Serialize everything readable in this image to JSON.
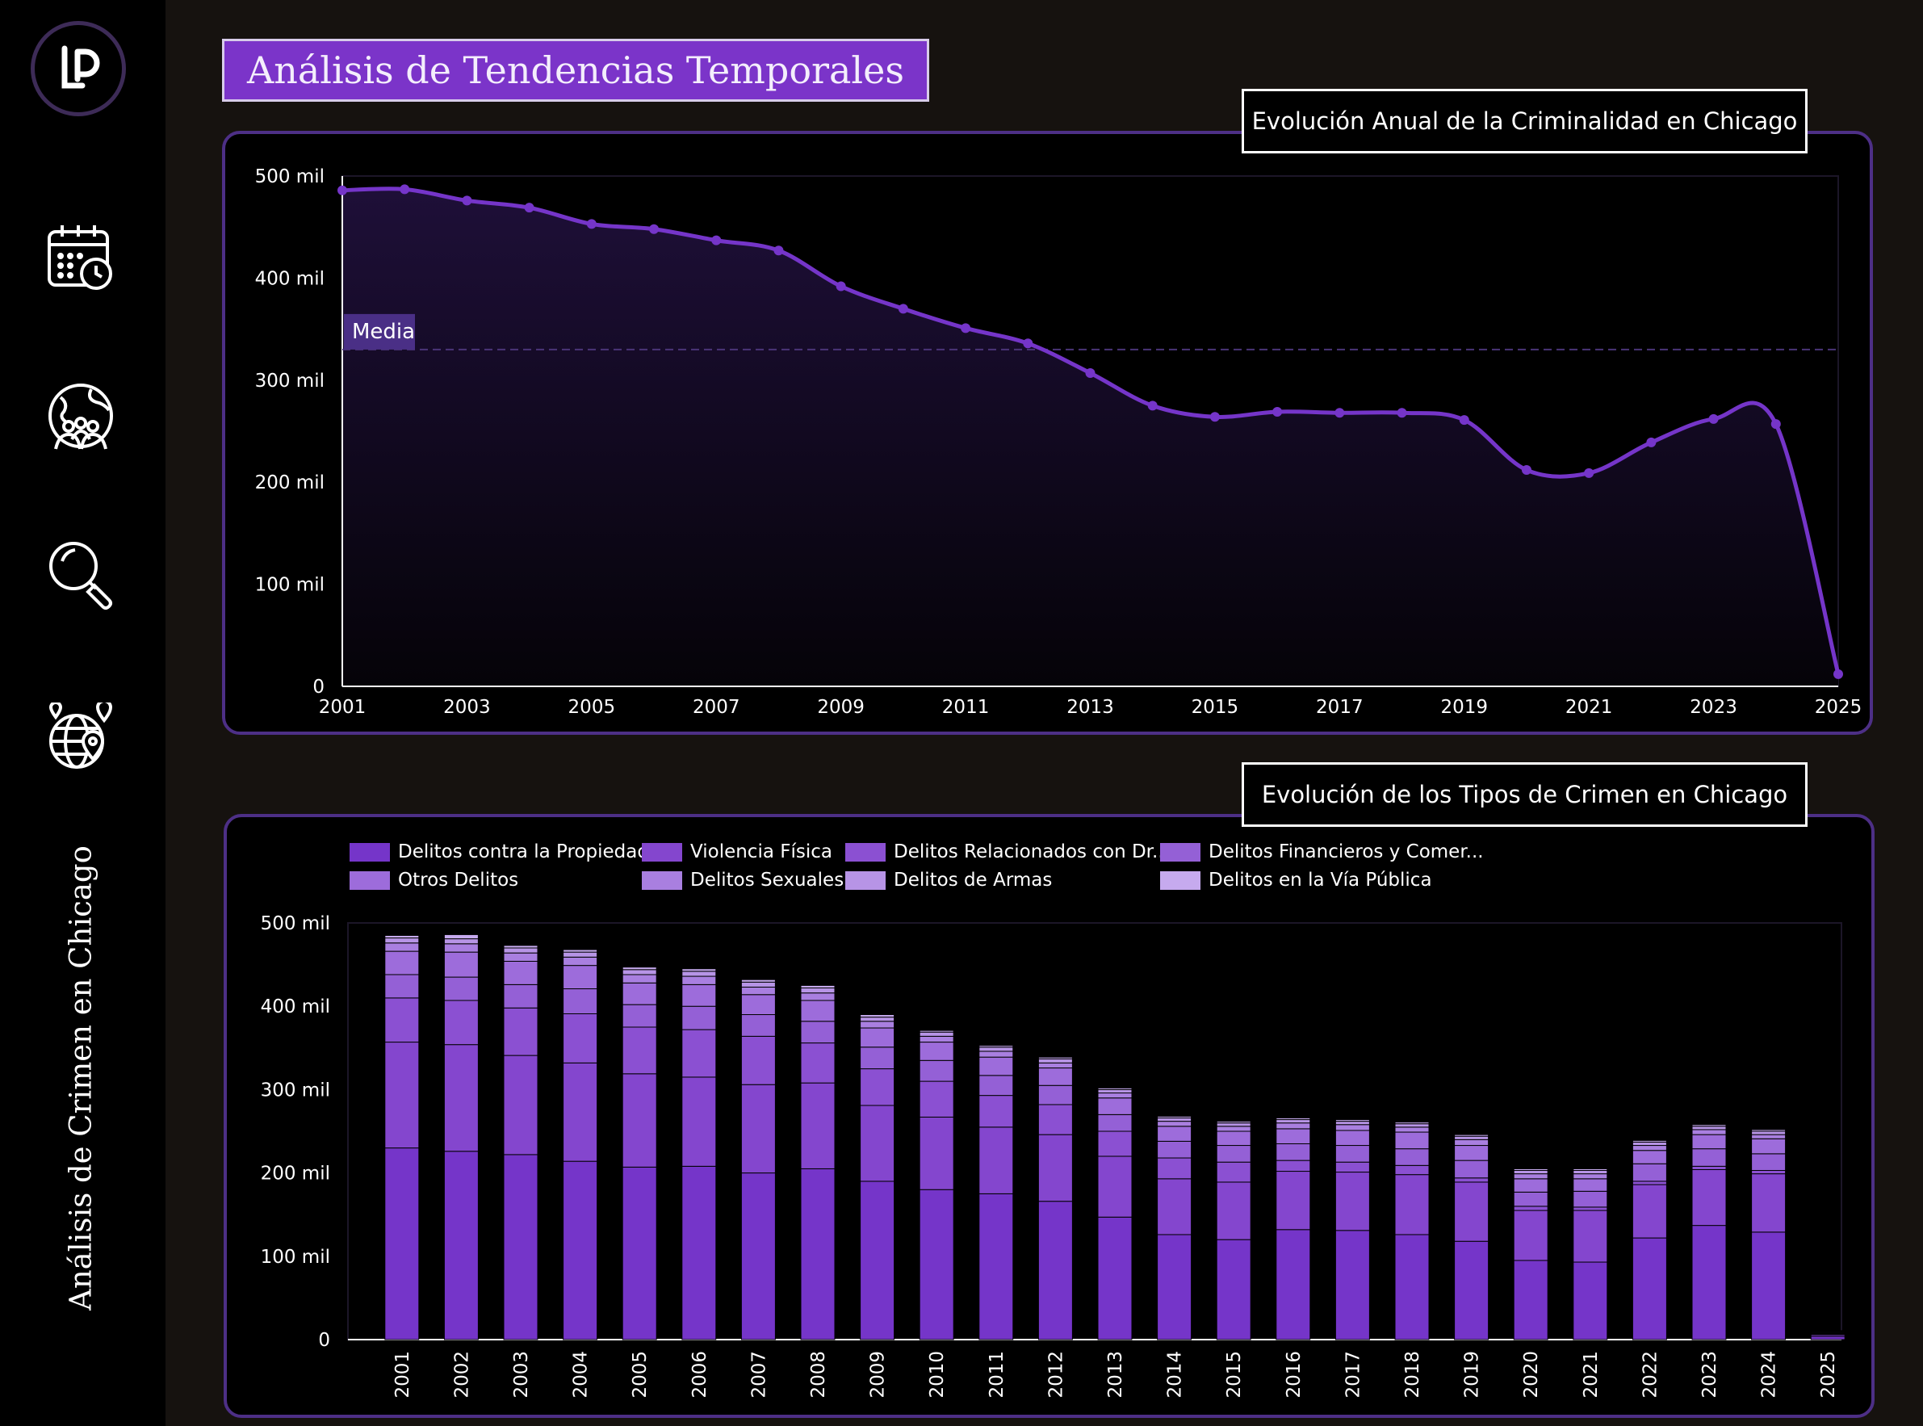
{
  "sidebar": {
    "logo_icon": "lp-logo-icon",
    "vertical_title": "Análisis de Crimen en Chicago",
    "nav_items": [
      {
        "name": "calendar-clock-icon"
      },
      {
        "name": "globe-people-icon"
      },
      {
        "name": "magnifier-icon"
      },
      {
        "name": "globe-location-icon"
      }
    ]
  },
  "page_title": "Análisis de Tendencias Temporales",
  "colors": {
    "accent": "#7b34c9",
    "line": "#7535c9",
    "panel_border": "#4d2f86",
    "background": "#16120f"
  },
  "chart_data": [
    {
      "type": "area",
      "title": "Evolución Anual de la Criminalidad en Chicago",
      "x": [
        2001,
        2002,
        2003,
        2004,
        2005,
        2006,
        2007,
        2008,
        2009,
        2010,
        2011,
        2012,
        2013,
        2014,
        2015,
        2016,
        2017,
        2018,
        2019,
        2020,
        2021,
        2022,
        2023,
        2024,
        2025
      ],
      "values": [
        486000,
        487000,
        476000,
        469000,
        453000,
        448000,
        437000,
        427000,
        392000,
        370000,
        351000,
        336000,
        307000,
        275000,
        264000,
        269000,
        268000,
        268000,
        261000,
        212000,
        209000,
        239000,
        262000,
        257000,
        12000
      ],
      "ylim": [
        0,
        500000
      ],
      "yticks": [
        "0",
        "100 mil",
        "200 mil",
        "300 mil",
        "400 mil",
        "500 mil"
      ],
      "xticks": [
        "2001",
        "2003",
        "2005",
        "2007",
        "2009",
        "2011",
        "2013",
        "2015",
        "2017",
        "2019",
        "2021",
        "2023",
        "2025"
      ],
      "reference_line": {
        "label": "Media",
        "value": 330000
      },
      "grid": false
    },
    {
      "type": "bar",
      "stacked": true,
      "title": "Evolución de los Tipos de Crimen en Chicago",
      "categories": [
        "2001",
        "2002",
        "2003",
        "2004",
        "2005",
        "2006",
        "2007",
        "2008",
        "2009",
        "2010",
        "2011",
        "2012",
        "2013",
        "2014",
        "2015",
        "2016",
        "2017",
        "2018",
        "2019",
        "2020",
        "2021",
        "2022",
        "2023",
        "2024",
        "2025"
      ],
      "ylim": [
        0,
        500000
      ],
      "yticks": [
        "0",
        "100 mil",
        "200 mil",
        "300 mil",
        "400 mil",
        "500 mil"
      ],
      "legend_position": "top-left",
      "series": [
        {
          "name": "Delitos contra la Propiedad",
          "color": "#7535c9",
          "values": [
            230000,
            226000,
            222000,
            214000,
            207000,
            208000,
            200000,
            205000,
            190000,
            180000,
            175000,
            166000,
            147000,
            126000,
            120000,
            132000,
            131000,
            126000,
            118000,
            95000,
            93000,
            122000,
            137000,
            129000,
            4000
          ]
        },
        {
          "name": "Violencia Física",
          "color": "#8446ce",
          "values": [
            127000,
            128000,
            119000,
            118000,
            112000,
            107000,
            106000,
            103000,
            91000,
            87000,
            80000,
            80000,
            73000,
            67000,
            69000,
            70000,
            70000,
            72000,
            71000,
            60000,
            62000,
            64000,
            67000,
            70000,
            2000
          ]
        },
        {
          "name": "Delitos Relacionados con Dr...",
          "color": "#8b50d2",
          "values": [
            53000,
            53000,
            57000,
            59000,
            56000,
            57000,
            58000,
            48000,
            44000,
            43000,
            38000,
            36000,
            30000,
            25000,
            24000,
            13000,
            12000,
            11000,
            5000,
            5000,
            4000,
            4000,
            4000,
            4000,
            1000
          ]
        },
        {
          "name": "Delitos Financieros y Comer...",
          "color": "#9460d6",
          "values": [
            28000,
            28000,
            28000,
            30000,
            27000,
            28000,
            26000,
            26000,
            26000,
            25000,
            24000,
            23000,
            20000,
            20000,
            20000,
            20000,
            20000,
            20000,
            21000,
            17000,
            19000,
            21000,
            21000,
            20000,
            1000
          ]
        },
        {
          "name": "Otros Delitos",
          "color": "#9d6cdb",
          "values": [
            28000,
            30000,
            28000,
            28000,
            26000,
            26000,
            24000,
            25000,
            23000,
            22000,
            22000,
            21000,
            20000,
            18000,
            17000,
            18000,
            18000,
            20000,
            18000,
            16000,
            15000,
            16000,
            17000,
            18000,
            1000
          ]
        },
        {
          "name": "Delitos Sexuales",
          "color": "#a97fe0",
          "values": [
            10000,
            10000,
            10000,
            10000,
            10000,
            10000,
            9000,
            9000,
            8000,
            7000,
            7000,
            6000,
            6000,
            6000,
            6000,
            7000,
            7000,
            6000,
            7000,
            6000,
            6000,
            6000,
            6000,
            5000,
            1000
          ]
        },
        {
          "name": "Delitos de Armas",
          "color": "#b794e6",
          "values": [
            6000,
            6000,
            6000,
            6000,
            6000,
            6000,
            6000,
            6000,
            5000,
            5000,
            5000,
            5000,
            4000,
            4000,
            4000,
            4000,
            4000,
            4000,
            4000,
            4000,
            4000,
            4000,
            4000,
            4000,
            500
          ]
        },
        {
          "name": "Delitos en la Vía Pública",
          "color": "#c6aaee",
          "values": [
            3000,
            5000,
            3000,
            3000,
            3000,
            3000,
            3000,
            3000,
            3000,
            2000,
            2000,
            2000,
            2000,
            2000,
            2000,
            2000,
            2000,
            2000,
            2000,
            2000,
            2000,
            2000,
            2000,
            2000,
            300
          ]
        }
      ]
    }
  ]
}
